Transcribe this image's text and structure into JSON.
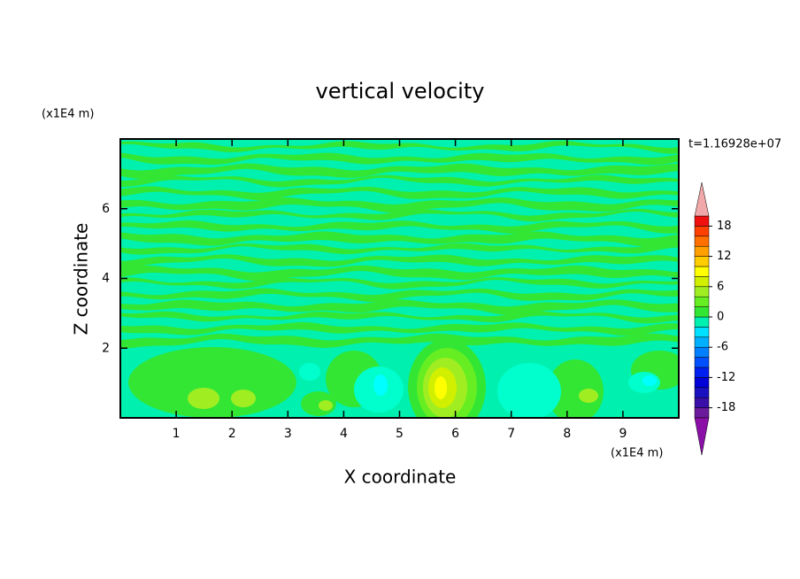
{
  "chart_data": {
    "type": "contour",
    "title": "vertical velocity",
    "x_label": "X coordinate",
    "y_label": "Z coordinate",
    "x_unit": "(x1E4 m)",
    "y_unit": "(x1E4 m)",
    "time_label": "t=1.16928e+07",
    "xlim": [
      0,
      10
    ],
    "ylim": [
      0,
      8
    ],
    "xticks": [
      1,
      2,
      3,
      4,
      5,
      6,
      7,
      8,
      9
    ],
    "yticks": [
      2,
      4,
      6
    ],
    "colorbar": {
      "lim": [
        -20,
        20
      ],
      "ticks": [
        18,
        12,
        6,
        0,
        -6,
        -12,
        -18
      ],
      "colors": [
        "#6a1a9a",
        "#3a10a8",
        "#1a10c0",
        "#0000d8",
        "#0020f0",
        "#0050ff",
        "#0080ff",
        "#00b0ff",
        "#00e0ff",
        "#00f0b0",
        "#33e633",
        "#66ee22",
        "#a0ee22",
        "#d0f000",
        "#ffff00",
        "#ffcc00",
        "#ffa000",
        "#ff7000",
        "#ff4000",
        "#f01010"
      ],
      "over_color": "#f0a8a8",
      "under_color": "#8a10a8"
    }
  }
}
